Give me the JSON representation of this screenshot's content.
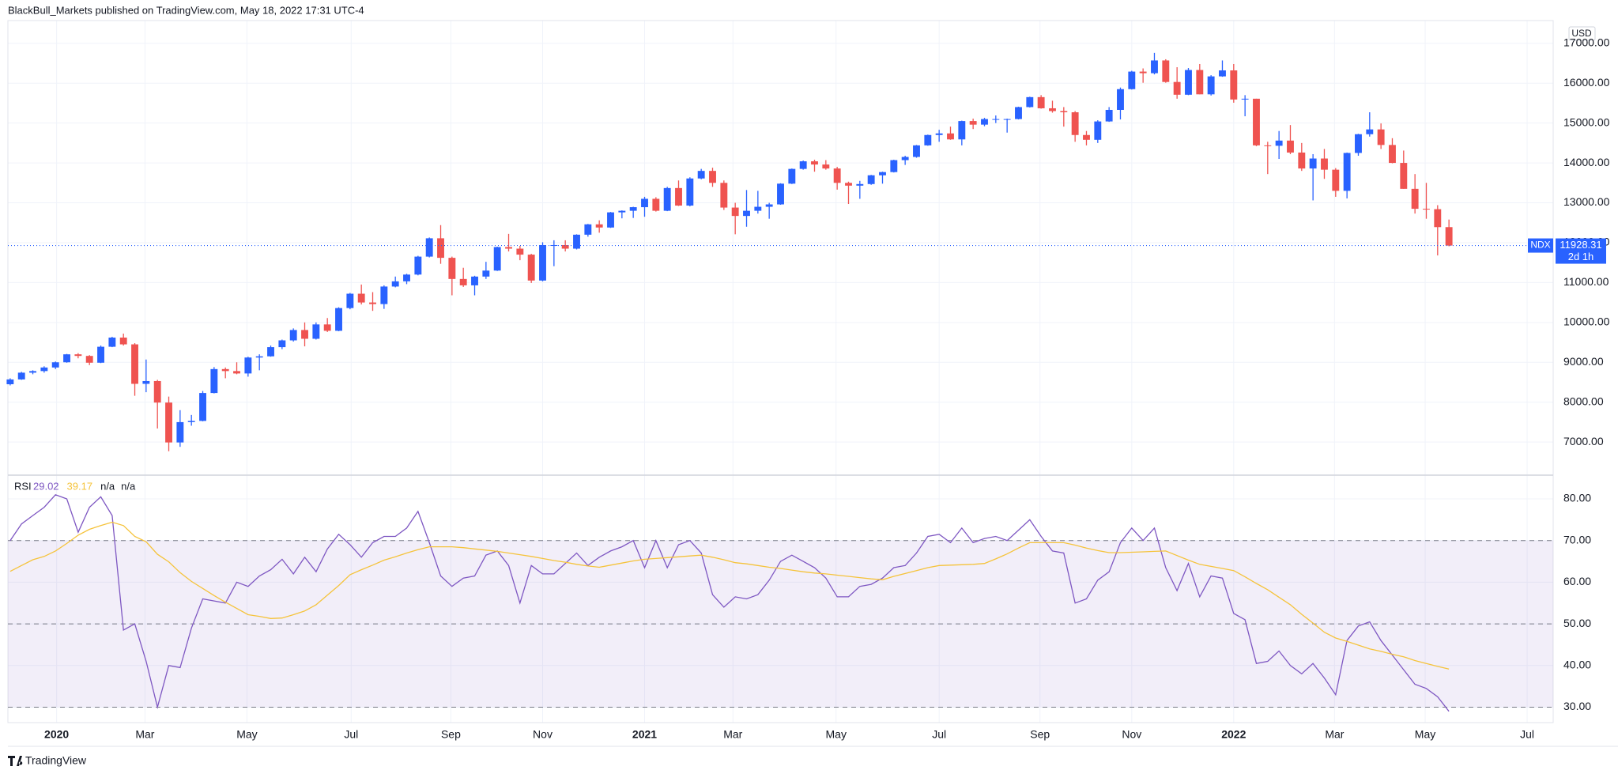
{
  "header": {
    "text": "BlackBull_Markets published on TradingView.com, May 18, 2022 17:31 UTC-4"
  },
  "footer": {
    "brand": "TradingView"
  },
  "chart_data": [
    {
      "type": "candlestick",
      "symbol": "NDX",
      "currency": "USD",
      "countdown": "2d 1h",
      "up_color": "#2962ff",
      "down_color": "#ef5350",
      "grid": true,
      "last_price_line": true,
      "open": [
        8450,
        8570,
        8740,
        8780,
        8870,
        9000,
        9200,
        9160,
        8990,
        9390,
        9620,
        9450,
        8460,
        8530,
        7990,
        6990,
        7500,
        7530,
        8230,
        8830,
        8780,
        8720,
        9120,
        9150,
        9380,
        9550,
        9810,
        9590,
        9950,
        9790,
        10360,
        10720,
        10500,
        10460,
        10900,
        11030,
        11200,
        11650,
        12110,
        11620,
        11090,
        10930,
        11150,
        11300,
        11890,
        11850,
        11700,
        11050,
        11940,
        11940,
        11850,
        12200,
        12460,
        12380,
        12760,
        12800,
        12890,
        13100,
        12800,
        13370,
        12930,
        13610,
        13800,
        13500,
        12880,
        12670,
        12800,
        12900,
        12960,
        13480,
        13850,
        14040,
        13960,
        13860,
        13500,
        13430,
        13470,
        13690,
        13770,
        14070,
        14150,
        14440,
        14700,
        14740,
        14590,
        15050,
        14960,
        15100,
        15100,
        15100,
        15400,
        15650,
        15370,
        15300,
        15270,
        14700,
        14580,
        15040,
        15330,
        15850,
        16290,
        16250,
        16570,
        16030,
        15710,
        16330,
        15720,
        16170,
        16320,
        15590,
        15610,
        14440,
        14430,
        14560,
        14260,
        13860,
        14110,
        13830,
        13300,
        14250,
        14720,
        14840,
        14450,
        14000,
        13350,
        12850,
        12840,
        12390
      ],
      "high": [
        8600,
        8760,
        8800,
        8900,
        9020,
        9210,
        9230,
        9180,
        9420,
        9640,
        9720,
        9480,
        9070,
        8560,
        8140,
        7800,
        7680,
        8280,
        8880,
        8870,
        9000,
        9140,
        9200,
        9420,
        9570,
        9850,
        10000,
        10000,
        10110,
        10380,
        10740,
        10950,
        10760,
        10930,
        11150,
        11220,
        11670,
        12130,
        12440,
        11650,
        11370,
        11170,
        11520,
        11900,
        12220,
        11920,
        11720,
        12010,
        12060,
        12060,
        12210,
        12470,
        12560,
        12770,
        12810,
        12900,
        13150,
        13140,
        13400,
        13560,
        13640,
        13850,
        13880,
        13560,
        13000,
        13320,
        13300,
        13000,
        13490,
        13860,
        14060,
        14080,
        14070,
        13900,
        13530,
        13550,
        13700,
        13780,
        14080,
        14180,
        14450,
        14710,
        14830,
        14910,
        15060,
        15110,
        15130,
        15190,
        15110,
        15410,
        15660,
        15700,
        15560,
        15400,
        15300,
        14800,
        15070,
        15400,
        15890,
        16310,
        16370,
        16760,
        16600,
        16400,
        16380,
        16480,
        16200,
        16570,
        16480,
        15700,
        15610,
        14530,
        14800,
        14950,
        14500,
        14220,
        14350,
        13870,
        14260,
        14730,
        15270,
        14990,
        14620,
        14310,
        13720,
        13500,
        12940,
        12580
      ],
      "low": [
        8420,
        8560,
        8700,
        8740,
        8830,
        8990,
        9100,
        8930,
        8980,
        9380,
        9420,
        8160,
        8250,
        7340,
        6770,
        6880,
        7410,
        7520,
        8220,
        8600,
        8700,
        8640,
        8800,
        9140,
        9330,
        9520,
        9400,
        9570,
        9760,
        9780,
        10330,
        10450,
        10290,
        10340,
        10880,
        10960,
        11180,
        11630,
        11470,
        10680,
        10890,
        10680,
        11090,
        11290,
        11780,
        11560,
        10990,
        11030,
        11410,
        11780,
        11830,
        12150,
        12250,
        12370,
        12610,
        12620,
        12650,
        12780,
        12790,
        12920,
        12910,
        13590,
        13400,
        12820,
        12210,
        12400,
        12730,
        12600,
        12950,
        13470,
        13830,
        13780,
        13830,
        13330,
        12970,
        13100,
        13450,
        13480,
        13760,
        13950,
        14130,
        14430,
        14530,
        14580,
        14440,
        14850,
        14920,
        15000,
        14760,
        15090,
        15390,
        15360,
        15260,
        14910,
        14530,
        14440,
        14500,
        15030,
        15090,
        15840,
        16010,
        16220,
        16010,
        15610,
        15700,
        15720,
        15690,
        16160,
        15510,
        15170,
        14420,
        13720,
        14100,
        14220,
        13800,
        13060,
        13600,
        13150,
        13110,
        14180,
        14660,
        14350,
        13990,
        13350,
        12730,
        12600,
        11680,
        11910
      ],
      "close": [
        8570,
        8740,
        8780,
        8870,
        9000,
        9200,
        9160,
        8990,
        9390,
        9620,
        9450,
        8460,
        8530,
        7990,
        6990,
        7500,
        7530,
        8230,
        8830,
        8780,
        8720,
        9120,
        9150,
        9380,
        9550,
        9810,
        9590,
        9950,
        9790,
        10360,
        10720,
        10500,
        10460,
        10900,
        11030,
        11200,
        11650,
        12110,
        11620,
        11090,
        10930,
        11150,
        11300,
        11890,
        11850,
        11700,
        11050,
        11940,
        11940,
        11850,
        12200,
        12460,
        12380,
        12760,
        12800,
        12890,
        13100,
        12800,
        13370,
        12930,
        13610,
        13800,
        13500,
        12880,
        12670,
        12800,
        12900,
        12960,
        13480,
        13850,
        14040,
        13960,
        13860,
        13500,
        13430,
        13470,
        13690,
        13770,
        14070,
        14150,
        14440,
        14700,
        14740,
        14590,
        15050,
        14960,
        15100,
        15100,
        15100,
        15400,
        15650,
        15370,
        15300,
        15270,
        14700,
        14580,
        15040,
        15330,
        15850,
        16290,
        16250,
        16570,
        16030,
        15710,
        16330,
        15720,
        16170,
        16320,
        15590,
        15610,
        14440,
        14430,
        14560,
        14260,
        13860,
        14110,
        13830,
        13300,
        14250,
        14720,
        14840,
        14450,
        14000,
        13350,
        12850,
        12840,
        12390,
        11928.31
      ],
      "ylim": [
        6170,
        17570
      ],
      "yticks": [
        {
          "value": 7000,
          "label": "7000.00"
        },
        {
          "value": 8000,
          "label": "8000.00"
        },
        {
          "value": 9000,
          "label": "9000.00"
        },
        {
          "value": 10000,
          "label": "10000.00"
        },
        {
          "value": 11000,
          "label": "11000.00"
        },
        {
          "value": 12000,
          "label": "12000.00"
        },
        {
          "value": 13000,
          "label": "13000.00"
        },
        {
          "value": 14000,
          "label": "14000.00"
        },
        {
          "value": 15000,
          "label": "15000.00"
        },
        {
          "value": 16000,
          "label": "16000.00"
        },
        {
          "value": 17000,
          "label": "17000.00"
        }
      ],
      "xlim": [
        -0.2,
        136.2
      ],
      "xticks": [
        {
          "value": 4.1,
          "label": "2020"
        },
        {
          "value": 11.9,
          "label": "Mar"
        },
        {
          "value": 20.9,
          "label": "May"
        },
        {
          "value": 30.1,
          "label": "Jul"
        },
        {
          "value": 38.9,
          "label": "Sep"
        },
        {
          "value": 47.0,
          "label": "Nov"
        },
        {
          "value": 56.0,
          "label": "2021"
        },
        {
          "value": 63.8,
          "label": "Mar"
        },
        {
          "value": 72.9,
          "label": "May"
        },
        {
          "value": 82.0,
          "label": "Jul"
        },
        {
          "value": 90.9,
          "label": "Sep"
        },
        {
          "value": 99.0,
          "label": "Nov"
        },
        {
          "value": 108.0,
          "label": "2022"
        },
        {
          "value": 116.9,
          "label": "Mar"
        },
        {
          "value": 124.9,
          "label": "May"
        },
        {
          "value": 133.9,
          "label": "Jul"
        }
      ]
    },
    {
      "type": "line",
      "title": "RSI",
      "na_labels": [
        "n/a",
        "n/a"
      ],
      "grid": true,
      "band": [
        30,
        70
      ],
      "midline": 50,
      "band_color": "#7e57c2",
      "series": [
        {
          "color": "#7e57c2",
          "values": [
            70,
            74,
            76,
            78,
            81,
            80,
            72,
            78,
            80.5,
            76,
            48.5,
            50,
            41,
            30,
            40,
            39.5,
            49,
            56,
            55.5,
            55,
            60,
            59,
            61.5,
            63,
            65.5,
            62,
            66,
            62.5,
            68,
            71.5,
            69,
            66,
            69.5,
            71,
            71,
            73,
            77,
            69.5,
            61.5,
            59,
            61,
            61.5,
            66.5,
            67.5,
            64,
            55,
            64,
            62,
            62,
            64.5,
            67,
            64,
            66,
            67.5,
            68.5,
            70,
            63.5,
            70,
            63.5,
            69,
            70,
            67,
            57,
            54,
            56.5,
            56,
            57,
            60.5,
            65,
            66.5,
            65,
            63.5,
            61,
            56.5,
            56.5,
            59,
            59.5,
            61,
            63.5,
            64,
            67,
            71,
            71.5,
            69.5,
            73,
            69.5,
            70.5,
            71,
            70,
            72.5,
            75,
            71,
            67.5,
            67,
            55,
            56,
            60.5,
            62.5,
            69.5,
            73,
            70,
            73,
            63.5,
            58,
            64.5,
            56.5,
            61.5,
            61,
            52.5,
            51,
            40.5,
            41,
            43.5,
            40,
            38,
            40.5,
            37,
            33,
            46,
            49.5,
            50.5,
            46,
            42.5,
            39,
            35.5,
            34.5,
            32.5,
            29.02
          ]
        },
        {
          "color": "#f5c33b",
          "values": [
            62.6,
            64,
            65.4,
            66.2,
            67.5,
            69.3,
            71.3,
            72.7,
            73.6,
            74.4,
            73.6,
            71,
            69.7,
            66.7,
            64.9,
            62.3,
            60.2,
            58.5,
            56.8,
            55.2,
            53.7,
            52.2,
            51.8,
            51.3,
            51.4,
            52.2,
            53.1,
            54.6,
            56.9,
            59.2,
            61.8,
            63,
            64.1,
            65.3,
            66.1,
            67,
            67.8,
            68.5,
            68.5,
            68.5,
            68.3,
            68,
            67.7,
            67.4,
            67,
            66.6,
            66.2,
            65.7,
            65.2,
            64.8,
            64.3,
            63.9,
            63.6,
            64.1,
            64.6,
            65.1,
            65.5,
            65.7,
            65.9,
            66.1,
            66.3,
            66.5,
            66,
            65.4,
            64.7,
            64.4,
            64,
            63.6,
            63.3,
            62.9,
            62.5,
            62.2,
            62,
            61.7,
            61.4,
            61.1,
            60.8,
            60.6,
            61.4,
            62.1,
            62.8,
            63.5,
            64,
            64.1,
            64.2,
            64.3,
            64.5,
            65.6,
            66.8,
            68.2,
            69.5,
            69.5,
            69.5,
            69.5,
            68.9,
            68.2,
            67.6,
            67.1,
            67.1,
            67.2,
            67.3,
            67.4,
            67.5,
            66.4,
            65.3,
            64.3,
            63.8,
            63.3,
            62.8,
            61.3,
            59.7,
            58.2,
            56.4,
            54.6,
            52.3,
            50.2,
            48,
            46.6,
            45.8,
            44.9,
            44,
            43.4,
            42.7,
            42.1,
            41.2,
            40.5,
            39.8,
            39.17
          ]
        }
      ],
      "ylim": [
        26.3,
        85.7
      ],
      "yticks": [
        {
          "value": 30,
          "label": "30.00"
        },
        {
          "value": 40,
          "label": "40.00"
        },
        {
          "value": 50,
          "label": "50.00"
        },
        {
          "value": 60,
          "label": "60.00"
        },
        {
          "value": 70,
          "label": "70.00"
        },
        {
          "value": 80,
          "label": "80.00"
        }
      ]
    }
  ]
}
